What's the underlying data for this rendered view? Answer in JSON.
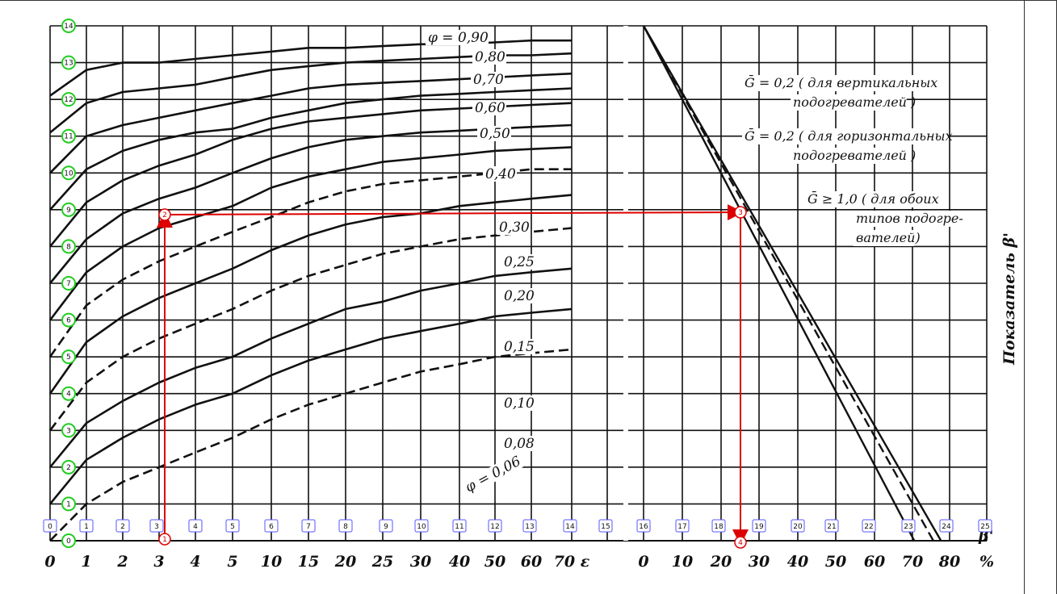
{
  "chart_data": {
    "type": "line",
    "title": "",
    "ylabel": "Показатель β'",
    "x_ticks_left": [
      "0",
      "1",
      "2",
      "3",
      "4",
      "5",
      "10",
      "15",
      "20",
      "25",
      "30",
      "40",
      "50",
      "60",
      "70 ε"
    ],
    "x_ticks_right": [
      "0",
      "10",
      "20",
      "30",
      "40",
      "50",
      "60",
      "70",
      "80",
      "%"
    ],
    "x_right_suffix": "β'",
    "ylim": [
      0,
      14
    ],
    "phi_labels": [
      "φ = 0,90",
      "0,80",
      "0,70",
      "0,60",
      "0,50",
      "0,40",
      "0,30",
      "0,25",
      "0,20",
      "0,15",
      "0,10",
      "0,08",
      "φ = 0,06"
    ],
    "series": [
      {
        "name": "φ = 0,90",
        "style": "solid",
        "y": [
          12.1,
          12.8,
          13.0,
          13.0,
          13.1,
          13.2,
          13.3,
          13.4,
          13.4,
          13.45,
          13.5,
          13.5,
          13.55,
          13.6,
          13.6
        ]
      },
      {
        "name": "0,80",
        "style": "solid",
        "y": [
          11.1,
          11.9,
          12.2,
          12.3,
          12.4,
          12.6,
          12.8,
          12.9,
          13.0,
          13.05,
          13.1,
          13.15,
          13.2,
          13.2,
          13.25
        ]
      },
      {
        "name": "0,70",
        "style": "solid",
        "y": [
          10.0,
          11.0,
          11.3,
          11.5,
          11.7,
          11.9,
          12.1,
          12.3,
          12.4,
          12.45,
          12.5,
          12.55,
          12.6,
          12.65,
          12.7
        ]
      },
      {
        "name": "0,60",
        "style": "solid",
        "y": [
          9.0,
          10.1,
          10.6,
          10.9,
          11.1,
          11.2,
          11.5,
          11.7,
          11.9,
          12.0,
          12.1,
          12.15,
          12.2,
          12.25,
          12.3
        ]
      },
      {
        "name": "0,50",
        "style": "solid",
        "y": [
          8.0,
          9.2,
          9.8,
          10.2,
          10.5,
          10.9,
          11.2,
          11.4,
          11.5,
          11.6,
          11.7,
          11.75,
          11.8,
          11.85,
          11.9
        ]
      },
      {
        "name": "0,40",
        "style": "solid",
        "y": [
          7.0,
          8.2,
          8.9,
          9.3,
          9.6,
          10.0,
          10.4,
          10.7,
          10.9,
          11.0,
          11.1,
          11.15,
          11.2,
          11.25,
          11.3
        ]
      },
      {
        "name": "0,30",
        "style": "solid",
        "y": [
          6.0,
          7.3,
          8.0,
          8.5,
          8.8,
          9.1,
          9.6,
          9.9,
          10.1,
          10.3,
          10.4,
          10.5,
          10.6,
          10.65,
          10.7
        ]
      },
      {
        "name": "0,25",
        "style": "dashed",
        "y": [
          5.0,
          6.4,
          7.1,
          7.6,
          8.0,
          8.4,
          8.8,
          9.2,
          9.5,
          9.7,
          9.8,
          9.9,
          10.0,
          10.1,
          10.1
        ]
      },
      {
        "name": "0,20",
        "style": "solid",
        "y": [
          4.0,
          5.4,
          6.1,
          6.6,
          7.0,
          7.4,
          7.9,
          8.3,
          8.6,
          8.8,
          8.9,
          9.1,
          9.2,
          9.3,
          9.4
        ]
      },
      {
        "name": "0,15",
        "style": "dashed",
        "y": [
          3.0,
          4.3,
          5.0,
          5.5,
          5.9,
          6.3,
          6.8,
          7.2,
          7.5,
          7.8,
          8.0,
          8.2,
          8.3,
          8.4,
          8.5
        ]
      },
      {
        "name": "0,10",
        "style": "solid",
        "y": [
          2.0,
          3.2,
          3.8,
          4.3,
          4.7,
          5.0,
          5.5,
          5.9,
          6.3,
          6.5,
          6.8,
          7.0,
          7.2,
          7.3,
          7.4
        ]
      },
      {
        "name": "0,08",
        "style": "solid",
        "y": [
          1.0,
          2.2,
          2.8,
          3.3,
          3.7,
          4.0,
          4.5,
          4.9,
          5.2,
          5.5,
          5.7,
          5.9,
          6.1,
          6.2,
          6.3
        ]
      },
      {
        "name": "φ = 0,06",
        "style": "dashed",
        "y": [
          0.0,
          1.0,
          1.6,
          2.0,
          2.4,
          2.8,
          3.3,
          3.7,
          4.0,
          4.3,
          4.6,
          4.8,
          5.0,
          5.1,
          5.2
        ]
      }
    ],
    "right_panel": {
      "lines": [
        {
          "label_lines": [
            "Ḡ = 0,2  ( для вертикальных",
            "подогревателей )"
          ],
          "style": "solid",
          "from": [
            0,
            14
          ],
          "to": [
            78,
            0
          ]
        },
        {
          "label_lines": [
            "Ḡ = 0,2  ( для горизонтальных",
            "подогревателей )"
          ],
          "style": "dashed",
          "from": [
            0,
            14
          ],
          "to": [
            76,
            0
          ]
        },
        {
          "label_lines": [
            "Ḡ ≥ 1,0  ( для обоих",
            "типов подогре-",
            "вателей)"
          ],
          "style": "solid",
          "from": [
            0,
            14
          ],
          "to": [
            71,
            0
          ]
        }
      ]
    },
    "grid": true,
    "annotations": {
      "green_markers": [
        "0",
        "1",
        "2",
        "3",
        "4",
        "5",
        "6",
        "7",
        "8",
        "9",
        "10",
        "11",
        "12",
        "13",
        "14"
      ],
      "blue_markers": [
        "0",
        "1",
        "2",
        "3",
        "4",
        "5",
        "6",
        "7",
        "8",
        "9",
        "10",
        "11",
        "12",
        "13",
        "14",
        "15",
        "16",
        "17",
        "18",
        "19",
        "20",
        "21",
        "22",
        "23",
        "24",
        "25"
      ],
      "red_path": [
        {
          "label": "1",
          "x_label": "3",
          "y": 0
        },
        {
          "label": "2",
          "x_label": "3",
          "y": 9
        },
        {
          "label": "3",
          "x_label": "25",
          "y": 9
        },
        {
          "label": "4",
          "x_label": "25",
          "y": 0
        }
      ]
    }
  }
}
